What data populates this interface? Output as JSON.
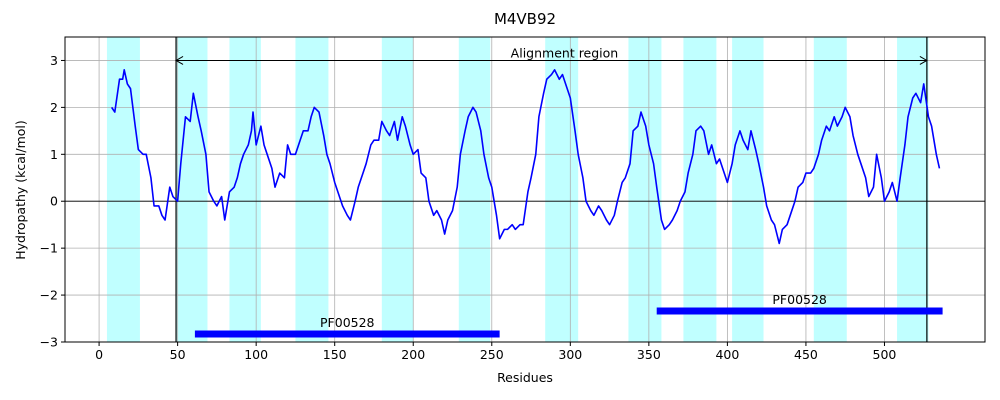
{
  "chart_data": {
    "type": "line",
    "title": "M4VB92",
    "x_label": "Residues",
    "y_label": "Hydropathy (kcal/mol)",
    "xlim": [
      -21.7,
      564
    ],
    "ylim": [
      -3,
      3.5
    ],
    "xticks": [
      0,
      50,
      100,
      150,
      200,
      250,
      300,
      350,
      400,
      450,
      500
    ],
    "yticks": [
      {
        "value": -3,
        "label": "−3"
      },
      {
        "value": -2,
        "label": "−2"
      },
      {
        "value": -1,
        "label": "−1"
      },
      0,
      1,
      2,
      3
    ],
    "grid": true,
    "hline": 0,
    "color": "#0000ff",
    "region_color": "#c0ffff",
    "regions": [
      [
        5,
        26
      ],
      [
        49,
        69
      ],
      [
        83,
        103
      ],
      [
        125,
        146
      ],
      [
        180,
        200
      ],
      [
        229,
        249
      ],
      [
        284,
        305
      ],
      [
        337,
        358
      ],
      [
        372,
        393
      ],
      [
        403,
        423
      ],
      [
        455,
        476
      ],
      [
        508,
        528
      ]
    ],
    "alignment_region": {
      "label": "Alignment region",
      "start": 49,
      "end": 527,
      "y": 3
    },
    "domain_color": "#0000ff",
    "domains": [
      {
        "label": "PF00528",
        "start": 61,
        "end": 255,
        "y": -2.83
      },
      {
        "label": "PF00528",
        "start": 355,
        "end": 537,
        "y": -2.34
      }
    ],
    "x": [
      8,
      10,
      13,
      15,
      16,
      18,
      20,
      23,
      25,
      28,
      30,
      33,
      35,
      38,
      40,
      42,
      45,
      47,
      50,
      52,
      55,
      58,
      60,
      63,
      65,
      68,
      70,
      73,
      75,
      78,
      80,
      83,
      86,
      88,
      90,
      92,
      95,
      97,
      98,
      100,
      103,
      105,
      107,
      110,
      112,
      115,
      118,
      120,
      122,
      125,
      128,
      130,
      133,
      135,
      137,
      140,
      143,
      145,
      147,
      150,
      153,
      155,
      158,
      160,
      163,
      165,
      168,
      170,
      173,
      175,
      178,
      180,
      183,
      185,
      188,
      190,
      193,
      195,
      198,
      200,
      203,
      205,
      208,
      210,
      213,
      215,
      218,
      220,
      222,
      225,
      228,
      230,
      233,
      235,
      238,
      240,
      243,
      245,
      248,
      250,
      253,
      255,
      258,
      260,
      263,
      265,
      268,
      270,
      273,
      275,
      278,
      280,
      283,
      285,
      288,
      290,
      293,
      295,
      298,
      300,
      303,
      305,
      308,
      310,
      313,
      315,
      318,
      320,
      323,
      325,
      328,
      330,
      333,
      335,
      338,
      340,
      343,
      345,
      348,
      350,
      353,
      355,
      358,
      360,
      363,
      365,
      368,
      370,
      373,
      375,
      378,
      380,
      383,
      385,
      388,
      390,
      393,
      395,
      398,
      400,
      403,
      405,
      408,
      410,
      413,
      415,
      418,
      420,
      423,
      425,
      428,
      430,
      433,
      435,
      438,
      440,
      443,
      445,
      448,
      450,
      453,
      455,
      458,
      460,
      463,
      465,
      468,
      470,
      473,
      475,
      478,
      480,
      483,
      485,
      488,
      490,
      493,
      495,
      498,
      500,
      503,
      505,
      508,
      510,
      513,
      515,
      518,
      520,
      523,
      525,
      528,
      530,
      533,
      535
    ],
    "values": [
      2.0,
      1.9,
      2.6,
      2.6,
      2.8,
      2.5,
      2.4,
      1.6,
      1.1,
      1.0,
      1.0,
      0.5,
      -0.1,
      -0.1,
      -0.3,
      -0.4,
      0.3,
      0.1,
      0.0,
      0.8,
      1.8,
      1.7,
      2.3,
      1.8,
      1.5,
      1.0,
      0.2,
      0.0,
      -0.1,
      0.1,
      -0.4,
      0.2,
      0.3,
      0.5,
      0.8,
      1.0,
      1.2,
      1.5,
      1.9,
      1.2,
      1.6,
      1.2,
      1.0,
      0.7,
      0.3,
      0.6,
      0.5,
      1.2,
      1.0,
      1.0,
      1.3,
      1.5,
      1.5,
      1.8,
      2.0,
      1.9,
      1.4,
      1.0,
      0.8,
      0.4,
      0.1,
      -0.1,
      -0.3,
      -0.4,
      0.0,
      0.3,
      0.6,
      0.8,
      1.2,
      1.3,
      1.3,
      1.7,
      1.5,
      1.4,
      1.7,
      1.3,
      1.8,
      1.6,
      1.2,
      1.0,
      1.1,
      0.6,
      0.5,
      0.0,
      -0.3,
      -0.2,
      -0.4,
      -0.7,
      -0.4,
      -0.2,
      0.3,
      1.0,
      1.5,
      1.8,
      2.0,
      1.9,
      1.5,
      1.0,
      0.5,
      0.3,
      -0.3,
      -0.8,
      -0.6,
      -0.6,
      -0.5,
      -0.6,
      -0.5,
      -0.5,
      0.2,
      0.5,
      1.0,
      1.8,
      2.3,
      2.6,
      2.7,
      2.8,
      2.6,
      2.7,
      2.4,
      2.2,
      1.5,
      1.0,
      0.5,
      0.0,
      -0.2,
      -0.3,
      -0.1,
      -0.2,
      -0.4,
      -0.5,
      -0.3,
      0.0,
      0.4,
      0.5,
      0.8,
      1.5,
      1.6,
      1.9,
      1.6,
      1.2,
      0.8,
      0.3,
      -0.4,
      -0.6,
      -0.5,
      -0.4,
      -0.2,
      0.0,
      0.2,
      0.6,
      1.0,
      1.5,
      1.6,
      1.5,
      1.0,
      1.2,
      0.8,
      0.9,
      0.6,
      0.4,
      0.8,
      1.2,
      1.5,
      1.3,
      1.1,
      1.5,
      1.1,
      0.8,
      0.3,
      -0.1,
      -0.4,
      -0.5,
      -0.9,
      -0.6,
      -0.5,
      -0.3,
      0.0,
      0.3,
      0.4,
      0.6,
      0.6,
      0.7,
      1.0,
      1.3,
      1.6,
      1.5,
      1.8,
      1.6,
      1.8,
      2.0,
      1.8,
      1.4,
      1.0,
      0.8,
      0.5,
      0.1,
      0.3,
      1.0,
      0.5,
      0.0,
      0.2,
      0.4,
      0.0,
      0.5,
      1.2,
      1.8,
      2.2,
      2.3,
      2.1,
      2.5,
      1.8,
      1.6,
      1.0,
      0.7
    ]
  }
}
